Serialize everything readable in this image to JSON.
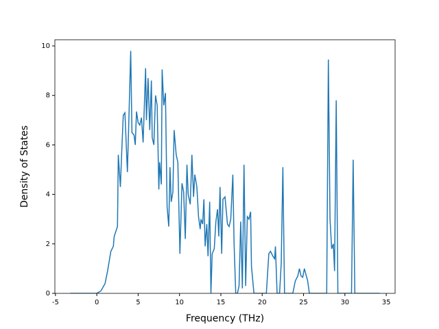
{
  "chart_data": {
    "type": "line",
    "xlabel": "Frequency (THz)",
    "ylabel": "Density of States",
    "xlim": [
      -5.07,
      36.07
    ],
    "ylim": [
      0,
      10.25
    ],
    "xticks": [
      -5,
      0,
      5,
      10,
      15,
      20,
      25,
      30,
      35
    ],
    "yticks": [
      0,
      2,
      4,
      6,
      8,
      10
    ],
    "grid": false,
    "x": [
      -3.2,
      0,
      0.5,
      1.0,
      1.3,
      1.7,
      2.0,
      2.1,
      2.5,
      2.6,
      2.85,
      3.0,
      3.2,
      3.4,
      3.7,
      3.9,
      4.1,
      4.25,
      4.5,
      4.65,
      4.8,
      5.0,
      5.2,
      5.4,
      5.6,
      5.9,
      6.0,
      6.2,
      6.4,
      6.6,
      6.7,
      6.9,
      7.1,
      7.3,
      7.5,
      7.6,
      7.8,
      7.9,
      8.1,
      8.3,
      8.5,
      8.7,
      8.85,
      9.0,
      9.2,
      9.35,
      9.6,
      9.8,
      10.05,
      10.3,
      10.5,
      10.7,
      10.9,
      11.05,
      11.3,
      11.5,
      11.7,
      11.85,
      12.1,
      12.3,
      12.5,
      12.6,
      12.8,
      12.95,
      13.1,
      13.3,
      13.45,
      13.65,
      13.8,
      13.95,
      14.2,
      14.4,
      14.6,
      14.75,
      14.9,
      15.1,
      15.25,
      15.5,
      15.8,
      16.0,
      16.2,
      16.45,
      16.6,
      16.8,
      17.0,
      17.2,
      17.4,
      17.6,
      17.8,
      18.0,
      18.2,
      18.4,
      18.6,
      18.7,
      19.0,
      20.5,
      20.8,
      21.0,
      21.3,
      21.5,
      21.6,
      21.8,
      22.1,
      22.3,
      22.5,
      22.7,
      23.7,
      24.0,
      24.3,
      24.5,
      24.7,
      24.9,
      25.1,
      25.3,
      25.5,
      25.7,
      27.8,
      28.0,
      28.2,
      28.4,
      28.6,
      28.75,
      28.95,
      29.15,
      30.8,
      31.0,
      31.2,
      34.2
    ],
    "series": [
      {
        "color": "#1f77b4",
        "values": [
          0,
          0,
          0.1,
          0.4,
          0.9,
          1.7,
          1.9,
          2.3,
          2.7,
          5.6,
          4.3,
          5.6,
          7.2,
          7.3,
          4.9,
          7.3,
          9.8,
          6.5,
          6.4,
          6.0,
          7.35,
          6.9,
          6.8,
          7.1,
          6.1,
          9.1,
          7.0,
          8.7,
          6.6,
          8.6,
          6.3,
          6.0,
          8.0,
          7.6,
          4.2,
          5.3,
          4.4,
          9.05,
          7.6,
          8.1,
          3.5,
          2.7,
          5.1,
          3.7,
          4.1,
          6.6,
          5.6,
          5.3,
          1.6,
          4.45,
          4.1,
          2.2,
          5.2,
          4.0,
          3.6,
          5.6,
          3.9,
          4.8,
          4.3,
          3.1,
          2.6,
          3.0,
          2.8,
          3.8,
          1.9,
          2.8,
          1.5,
          3.7,
          0.0,
          1.6,
          1.8,
          2.9,
          3.4,
          2.3,
          4.3,
          1.6,
          3.8,
          3.9,
          2.8,
          2.7,
          3.0,
          4.8,
          2.0,
          0.0,
          0.0,
          0.3,
          2.9,
          0.2,
          5.2,
          0.3,
          3.1,
          3.0,
          3.3,
          1.1,
          0.0,
          0.0,
          1.6,
          1.7,
          1.5,
          1.4,
          1.9,
          0.0,
          0.0,
          1.2,
          5.1,
          0.0,
          0.0,
          0.5,
          0.7,
          1.0,
          0.7,
          0.65,
          1.0,
          0.75,
          0.5,
          0.0,
          0.0,
          9.45,
          3.0,
          1.8,
          2.0,
          0.9,
          7.8,
          0.0,
          0.0,
          5.4,
          0.0,
          0
        ]
      }
    ]
  }
}
